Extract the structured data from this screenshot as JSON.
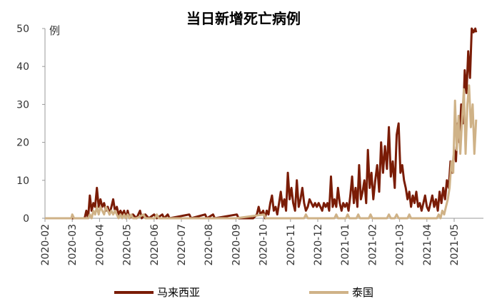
{
  "chart_data": {
    "type": "line",
    "title": "当日新增死亡病例",
    "y_unit": "例",
    "ylim": [
      0,
      50
    ],
    "yticks": [
      0,
      10,
      20,
      30,
      40,
      50
    ],
    "grid": false,
    "legend_position": "bottom",
    "x_tick_labels": [
      "2020-02",
      "2020-03",
      "2020-04",
      "2020-05",
      "2020-06",
      "2020-07",
      "2020-08",
      "2020-09",
      "2020-10",
      "2020-11",
      "2020-12",
      "2021-01",
      "2021-02",
      "2021-03",
      "2021-04",
      "2021-05"
    ],
    "series": [
      {
        "name": "马来西亚",
        "color": "#7a1c06",
        "points": [
          [
            "2020-02-01",
            0
          ],
          [
            "2020-03-15",
            0
          ],
          [
            "2020-03-17",
            2
          ],
          [
            "2020-03-19",
            0
          ],
          [
            "2020-03-21",
            6
          ],
          [
            "2020-03-23",
            2
          ],
          [
            "2020-03-25",
            4
          ],
          [
            "2020-03-27",
            3
          ],
          [
            "2020-03-29",
            8
          ],
          [
            "2020-03-31",
            3
          ],
          [
            "2020-04-02",
            5
          ],
          [
            "2020-04-04",
            3
          ],
          [
            "2020-04-06",
            4
          ],
          [
            "2020-04-08",
            2
          ],
          [
            "2020-04-10",
            3
          ],
          [
            "2020-04-12",
            1
          ],
          [
            "2020-04-14",
            3
          ],
          [
            "2020-04-16",
            5
          ],
          [
            "2020-04-18",
            2
          ],
          [
            "2020-04-20",
            3
          ],
          [
            "2020-04-22",
            1
          ],
          [
            "2020-04-24",
            2
          ],
          [
            "2020-04-26",
            1
          ],
          [
            "2020-04-28",
            2
          ],
          [
            "2020-04-30",
            0
          ],
          [
            "2020-05-02",
            2
          ],
          [
            "2020-05-04",
            0
          ],
          [
            "2020-05-08",
            1
          ],
          [
            "2020-05-12",
            0
          ],
          [
            "2020-05-16",
            2
          ],
          [
            "2020-05-18",
            0
          ],
          [
            "2020-05-22",
            1
          ],
          [
            "2020-05-26",
            0
          ],
          [
            "2020-06-01",
            1
          ],
          [
            "2020-06-04",
            0
          ],
          [
            "2020-06-10",
            1
          ],
          [
            "2020-06-12",
            0
          ],
          [
            "2020-06-16",
            1
          ],
          [
            "2020-06-18",
            0
          ],
          [
            "2020-07-10",
            1
          ],
          [
            "2020-07-12",
            0
          ],
          [
            "2020-07-28",
            1
          ],
          [
            "2020-07-30",
            0
          ],
          [
            "2020-08-06",
            1
          ],
          [
            "2020-08-08",
            0
          ],
          [
            "2020-09-02",
            1
          ],
          [
            "2020-09-04",
            0
          ],
          [
            "2020-09-20",
            0
          ],
          [
            "2020-09-24",
            1
          ],
          [
            "2020-09-26",
            3
          ],
          [
            "2020-09-28",
            1
          ],
          [
            "2020-10-01",
            2
          ],
          [
            "2020-10-03",
            0
          ],
          [
            "2020-10-05",
            2
          ],
          [
            "2020-10-07",
            1
          ],
          [
            "2020-10-09",
            4
          ],
          [
            "2020-10-11",
            6
          ],
          [
            "2020-10-13",
            2
          ],
          [
            "2020-10-15",
            3
          ],
          [
            "2020-10-17",
            1
          ],
          [
            "2020-10-19",
            4
          ],
          [
            "2020-10-21",
            7
          ],
          [
            "2020-10-23",
            3
          ],
          [
            "2020-10-25",
            5
          ],
          [
            "2020-10-27",
            2
          ],
          [
            "2020-10-29",
            12
          ],
          [
            "2020-10-31",
            5
          ],
          [
            "2020-11-02",
            8
          ],
          [
            "2020-11-04",
            4
          ],
          [
            "2020-11-06",
            2
          ],
          [
            "2020-11-08",
            10
          ],
          [
            "2020-11-10",
            3
          ],
          [
            "2020-11-12",
            5
          ],
          [
            "2020-11-14",
            8
          ],
          [
            "2020-11-16",
            4
          ],
          [
            "2020-11-18",
            2
          ],
          [
            "2020-11-20",
            3
          ],
          [
            "2020-11-22",
            5
          ],
          [
            "2020-11-24",
            4
          ],
          [
            "2020-11-26",
            3
          ],
          [
            "2020-11-28",
            4
          ],
          [
            "2020-11-30",
            3
          ],
          [
            "2020-12-02",
            4
          ],
          [
            "2020-12-04",
            3
          ],
          [
            "2020-12-06",
            2
          ],
          [
            "2020-12-08",
            4
          ],
          [
            "2020-12-10",
            3
          ],
          [
            "2020-12-12",
            4
          ],
          [
            "2020-12-14",
            2
          ],
          [
            "2020-12-16",
            11
          ],
          [
            "2020-12-18",
            3
          ],
          [
            "2020-12-20",
            5
          ],
          [
            "2020-12-22",
            3
          ],
          [
            "2020-12-24",
            8
          ],
          [
            "2020-12-26",
            4
          ],
          [
            "2020-12-28",
            2
          ],
          [
            "2020-12-30",
            4
          ],
          [
            "2021-01-01",
            3
          ],
          [
            "2021-01-03",
            4
          ],
          [
            "2021-01-05",
            2
          ],
          [
            "2021-01-07",
            6
          ],
          [
            "2021-01-09",
            11
          ],
          [
            "2021-01-11",
            4
          ],
          [
            "2021-01-13",
            8
          ],
          [
            "2021-01-15",
            3
          ],
          [
            "2021-01-17",
            14
          ],
          [
            "2021-01-19",
            5
          ],
          [
            "2021-01-21",
            7
          ],
          [
            "2021-01-23",
            10
          ],
          [
            "2021-01-25",
            4
          ],
          [
            "2021-01-27",
            18
          ],
          [
            "2021-01-29",
            8
          ],
          [
            "2021-01-31",
            12
          ],
          [
            "2021-02-02",
            5
          ],
          [
            "2021-02-04",
            10
          ],
          [
            "2021-02-06",
            14
          ],
          [
            "2021-02-08",
            7
          ],
          [
            "2021-02-10",
            20
          ],
          [
            "2021-02-12",
            12
          ],
          [
            "2021-02-14",
            19
          ],
          [
            "2021-02-16",
            13
          ],
          [
            "2021-02-18",
            24
          ],
          [
            "2021-02-20",
            11
          ],
          [
            "2021-02-22",
            15
          ],
          [
            "2021-02-24",
            8
          ],
          [
            "2021-02-26",
            22
          ],
          [
            "2021-02-28",
            25
          ],
          [
            "2021-03-02",
            12
          ],
          [
            "2021-03-04",
            14
          ],
          [
            "2021-03-06",
            10
          ],
          [
            "2021-03-08",
            8
          ],
          [
            "2021-03-10",
            5
          ],
          [
            "2021-03-12",
            7
          ],
          [
            "2021-03-14",
            3
          ],
          [
            "2021-03-16",
            6
          ],
          [
            "2021-03-18",
            4
          ],
          [
            "2021-03-20",
            7
          ],
          [
            "2021-03-22",
            3
          ],
          [
            "2021-03-24",
            4
          ],
          [
            "2021-03-26",
            2
          ],
          [
            "2021-03-28",
            4
          ],
          [
            "2021-03-30",
            6
          ],
          [
            "2021-04-01",
            3
          ],
          [
            "2021-04-03",
            2
          ],
          [
            "2021-04-05",
            4
          ],
          [
            "2021-04-07",
            6
          ],
          [
            "2021-04-09",
            3
          ],
          [
            "2021-04-11",
            5
          ],
          [
            "2021-04-13",
            2
          ],
          [
            "2021-04-15",
            7
          ],
          [
            "2021-04-17",
            4
          ],
          [
            "2021-04-19",
            8
          ],
          [
            "2021-04-21",
            5
          ],
          [
            "2021-04-23",
            10
          ],
          [
            "2021-04-25",
            8
          ],
          [
            "2021-04-27",
            15
          ],
          [
            "2021-04-29",
            12
          ],
          [
            "2021-05-01",
            18
          ],
          [
            "2021-05-03",
            15
          ],
          [
            "2021-05-05",
            25
          ],
          [
            "2021-05-07",
            20
          ],
          [
            "2021-05-09",
            30
          ],
          [
            "2021-05-11",
            25
          ],
          [
            "2021-05-13",
            39
          ],
          [
            "2021-05-15",
            33
          ],
          [
            "2021-05-17",
            44
          ],
          [
            "2021-05-19",
            37
          ],
          [
            "2021-05-21",
            50
          ],
          [
            "2021-05-23",
            49
          ],
          [
            "2021-05-25",
            50
          ],
          [
            "2021-05-26",
            49
          ]
        ]
      },
      {
        "name": "泰国",
        "color": "#cfb287",
        "points": [
          [
            "2020-02-01",
            0
          ],
          [
            "2020-02-29",
            0
          ],
          [
            "2020-03-01",
            1
          ],
          [
            "2020-03-03",
            0
          ],
          [
            "2020-03-19",
            0
          ],
          [
            "2020-03-21",
            1
          ],
          [
            "2020-03-23",
            0
          ],
          [
            "2020-03-25",
            2
          ],
          [
            "2020-03-27",
            1
          ],
          [
            "2020-03-29",
            3
          ],
          [
            "2020-03-31",
            1
          ],
          [
            "2020-04-02",
            3
          ],
          [
            "2020-04-04",
            2
          ],
          [
            "2020-04-06",
            1
          ],
          [
            "2020-04-08",
            3
          ],
          [
            "2020-04-10",
            2
          ],
          [
            "2020-04-12",
            1
          ],
          [
            "2020-04-14",
            2
          ],
          [
            "2020-04-16",
            1
          ],
          [
            "2020-04-18",
            2
          ],
          [
            "2020-04-20",
            1
          ],
          [
            "2020-04-22",
            0
          ],
          [
            "2020-04-24",
            1
          ],
          [
            "2020-04-26",
            0
          ],
          [
            "2020-04-28",
            1
          ],
          [
            "2020-04-30",
            0
          ],
          [
            "2020-05-02",
            1
          ],
          [
            "2020-05-04",
            0
          ],
          [
            "2020-05-06",
            1
          ],
          [
            "2020-05-08",
            0
          ],
          [
            "2020-05-12",
            0
          ],
          [
            "2020-05-20",
            1
          ],
          [
            "2020-05-22",
            0
          ],
          [
            "2020-06-02",
            0
          ],
          [
            "2020-06-04",
            1
          ],
          [
            "2020-06-06",
            0
          ],
          [
            "2020-09-01",
            0
          ],
          [
            "2020-10-02",
            1
          ],
          [
            "2020-10-04",
            0
          ],
          [
            "2020-11-16",
            0
          ],
          [
            "2020-11-18",
            1
          ],
          [
            "2020-11-20",
            0
          ],
          [
            "2020-12-20",
            0
          ],
          [
            "2020-12-22",
            1
          ],
          [
            "2020-12-24",
            0
          ],
          [
            "2021-01-02",
            0
          ],
          [
            "2021-01-04",
            1
          ],
          [
            "2021-01-06",
            0
          ],
          [
            "2021-01-14",
            0
          ],
          [
            "2021-01-16",
            1
          ],
          [
            "2021-01-18",
            0
          ],
          [
            "2021-01-28",
            0
          ],
          [
            "2021-01-30",
            1
          ],
          [
            "2021-02-01",
            0
          ],
          [
            "2021-02-16",
            0
          ],
          [
            "2021-02-18",
            1
          ],
          [
            "2021-02-20",
            0
          ],
          [
            "2021-02-24",
            0
          ],
          [
            "2021-02-26",
            1
          ],
          [
            "2021-02-28",
            0
          ],
          [
            "2021-03-10",
            0
          ],
          [
            "2021-03-12",
            1
          ],
          [
            "2021-03-14",
            0
          ],
          [
            "2021-04-05",
            0
          ],
          [
            "2021-04-12",
            0
          ],
          [
            "2021-04-14",
            1
          ],
          [
            "2021-04-16",
            0
          ],
          [
            "2021-04-18",
            2
          ],
          [
            "2021-04-20",
            1
          ],
          [
            "2021-04-22",
            3
          ],
          [
            "2021-04-24",
            5
          ],
          [
            "2021-04-26",
            8
          ],
          [
            "2021-04-28",
            15
          ],
          [
            "2021-04-30",
            12
          ],
          [
            "2021-05-02",
            31
          ],
          [
            "2021-05-04",
            18
          ],
          [
            "2021-05-06",
            27
          ],
          [
            "2021-05-08",
            17
          ],
          [
            "2021-05-10",
            26
          ],
          [
            "2021-05-12",
            34
          ],
          [
            "2021-05-14",
            17
          ],
          [
            "2021-05-16",
            30
          ],
          [
            "2021-05-18",
            35
          ],
          [
            "2021-05-20",
            24
          ],
          [
            "2021-05-22",
            30
          ],
          [
            "2021-05-24",
            17
          ],
          [
            "2021-05-26",
            26
          ]
        ]
      }
    ]
  }
}
